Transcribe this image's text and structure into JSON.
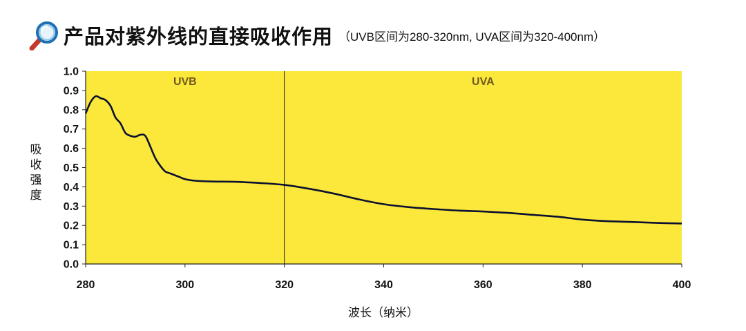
{
  "header": {
    "title": "产品对紫外线的直接吸收作用",
    "subtitle": "（UVB区间为280-320nm, UVA区间为320-400nm）"
  },
  "colors": {
    "plot_background": "#FCE83A",
    "line": "#0B1030",
    "magnifier_rim": "#1F6FB5",
    "magnifier_handle": "#C23A2A"
  },
  "chart_data": {
    "type": "line",
    "title": "产品对紫外线的直接吸收作用",
    "subtitle": "（UVB区间为280-320nm, UVA区间为320-400nm）",
    "xlabel": "波长（纳米）",
    "ylabel": "吸收强度",
    "xlim": [
      280,
      400
    ],
    "ylim": [
      0,
      1.0
    ],
    "x_ticks": [
      "280",
      "300",
      "320",
      "340",
      "360",
      "380",
      "400"
    ],
    "y_ticks": [
      "0.0",
      "0.1",
      "0.2",
      "0.3",
      "0.4",
      "0.5",
      "0.6",
      "0.7",
      "0.8",
      "0.9",
      "1.0"
    ],
    "grid": false,
    "regions": [
      {
        "label": "UVB",
        "x_start": 280,
        "x_end": 320
      },
      {
        "label": "UVA",
        "x_start": 320,
        "x_end": 400
      }
    ],
    "divider_x": 320,
    "series": [
      {
        "x": [
          280,
          281,
          282,
          283,
          284,
          285,
          286,
          287,
          288,
          289,
          290,
          291,
          292,
          293,
          294,
          295,
          296,
          297,
          298,
          299,
          300,
          302,
          305,
          310,
          315,
          320,
          325,
          330,
          335,
          340,
          345,
          350,
          355,
          360,
          365,
          370,
          375,
          380,
          385,
          390,
          395,
          400
        ],
        "y": [
          0.78,
          0.84,
          0.87,
          0.86,
          0.85,
          0.82,
          0.76,
          0.73,
          0.68,
          0.665,
          0.66,
          0.67,
          0.665,
          0.61,
          0.55,
          0.51,
          0.48,
          0.47,
          0.46,
          0.45,
          0.44,
          0.432,
          0.428,
          0.426,
          0.42,
          0.41,
          0.39,
          0.365,
          0.335,
          0.31,
          0.295,
          0.285,
          0.277,
          0.272,
          0.265,
          0.255,
          0.245,
          0.23,
          0.222,
          0.218,
          0.213,
          0.21
        ]
      }
    ]
  }
}
